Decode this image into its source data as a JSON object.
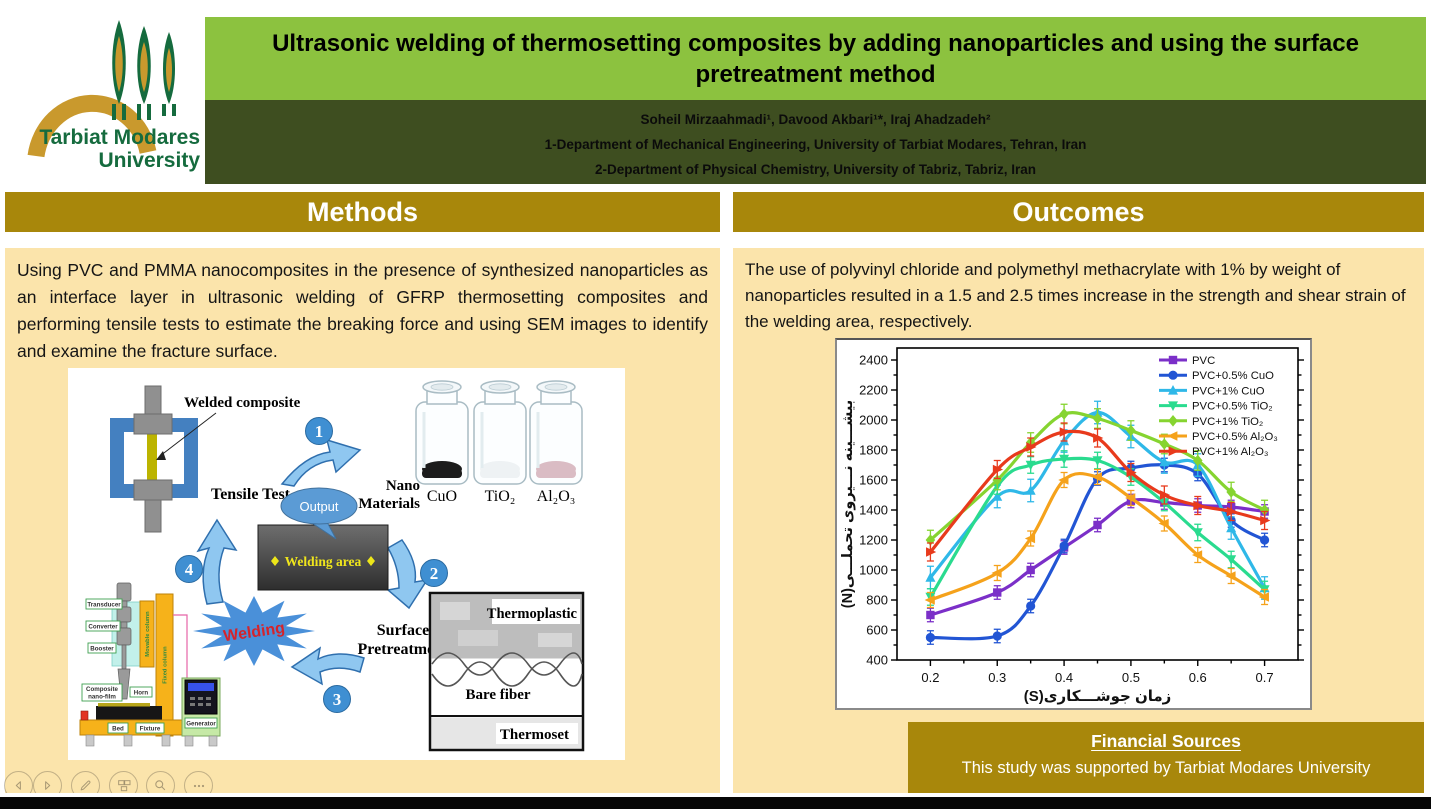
{
  "colors": {
    "title_banner": "#8CC23F",
    "authors_bar": "#3E4E20",
    "section_header": "#A8870B",
    "panel_bg": "#FBE4AB",
    "logo_green": "#156B3E",
    "logo_gold": "#C9992D",
    "bottom_bar": "#060606"
  },
  "logo": {
    "name1": "Tarbiat Modares",
    "name2": "University"
  },
  "header": {
    "title": "Ultrasonic welding of thermosetting composites by adding nanoparticles and using the surface pretreatment method",
    "authors": "Soheil Mirzaahmadi¹, Davood Akbari¹*, Iraj Ahadzadeh²",
    "affiliation1": "1-Department of Mechanical Engineering, University of Tarbiat Modares, Tehran, Iran",
    "affiliation2": "2-Department of Physical Chemistry, University of Tabriz, Tabriz, Iran"
  },
  "methods": {
    "header": "Methods",
    "paragraph": "Using PVC and PMMA nanocomposites in the presence of synthesized nanoparticles as an interface layer in ultrasonic welding of GFRP thermosetting composites and performing tensile tests to estimate the breaking force and using SEM images to identify and examine the fracture surface."
  },
  "figure": {
    "welded_composite": "Welded composite",
    "tensile_test": "Tensile Test",
    "output": "Output",
    "welding_area": "Welding area",
    "nano_line1": "Nano",
    "nano_line2": "Materials",
    "jars": [
      "CuO",
      "TiO₂",
      "Al₂O₃"
    ],
    "jar_powder_colors": [
      "#1c1c1c",
      "#eef2f4",
      "#dabcc4"
    ],
    "welding": "Welding",
    "surface_line1": "Surface",
    "surface_line2": "Pretreatment",
    "layers": [
      "Thermoplastic",
      "Bare fiber",
      "Thermoset"
    ],
    "steps": [
      "1",
      "2",
      "3",
      "4"
    ],
    "machine": {
      "transducer": "Transducer",
      "converter": "Converter",
      "booster": "Booster",
      "movable_column": "Movable column",
      "fixed_column": "Fixed column",
      "composite_film_1": "Composite",
      "composite_film_2": "nano-film",
      "horn": "Horn",
      "bed": "Bed",
      "fixture": "Fixture",
      "generator": "Generator"
    }
  },
  "outcomes": {
    "header": "Outcomes",
    "paragraph": "The use of polyvinyl chloride and polymethyl methacrylate with 1% by weight of nanoparticles resulted in a 1.5 and 2.5 times increase in the strength and shear strain of the welding area, respectively.",
    "financial_title": "Financial Sources",
    "financial_body": "This study was supported by Tarbiat Modares University"
  },
  "chart_data": {
    "type": "line",
    "x": [
      0.2,
      0.3,
      0.35,
      0.4,
      0.45,
      0.5,
      0.55,
      0.6,
      0.65,
      0.7
    ],
    "xlabel": "زمان جوشـــکاری(S)",
    "ylabel": "بیشـــینه نـــیروی تحملـــی(N)",
    "xlim": [
      0.15,
      0.75
    ],
    "ylim": [
      400,
      2480
    ],
    "xticks": [
      0.2,
      0.3,
      0.4,
      0.5,
      0.6,
      0.7
    ],
    "yticks": [
      400,
      600,
      800,
      1000,
      1200,
      1400,
      1600,
      1800,
      2000,
      2200,
      2400
    ],
    "grid": false,
    "legend_position": "top-right",
    "series": [
      {
        "name": "PVC",
        "color": "#7B2FC8",
        "marker": "square",
        "err": 45,
        "values": [
          700,
          850,
          1000,
          1150,
          1300,
          1460,
          1450,
          1430,
          1420,
          1390
        ]
      },
      {
        "name": "PVC+0.5% CuO",
        "color": "#2255D4",
        "marker": "circle",
        "err": 45,
        "values": [
          550,
          560,
          760,
          1160,
          1610,
          1680,
          1700,
          1640,
          1330,
          1200
        ]
      },
      {
        "name": "PVC+1% CuO",
        "color": "#2FB8E8",
        "marker": "triangle-up",
        "err": 75,
        "values": [
          950,
          1490,
          1530,
          1860,
          2050,
          1890,
          1720,
          1700,
          1280,
          880
        ]
      },
      {
        "name": "PVC+0.5% TiO₂",
        "color": "#2ADB8F",
        "marker": "triangle-down",
        "err": 55,
        "values": [
          820,
          1560,
          1700,
          1740,
          1730,
          1620,
          1450,
          1250,
          1070,
          870
        ]
      },
      {
        "name": "PVC+1% TiO₂",
        "color": "#86D430",
        "marker": "diamond",
        "err": 65,
        "values": [
          1200,
          1600,
          1850,
          2040,
          2010,
          1930,
          1840,
          1730,
          1520,
          1400
        ]
      },
      {
        "name": "PVC+0.5% Al₂O₃",
        "color": "#F5A21B",
        "marker": "triangle-left",
        "err": 50,
        "values": [
          800,
          980,
          1210,
          1600,
          1620,
          1480,
          1310,
          1100,
          960,
          820
        ]
      },
      {
        "name": "PVC+1% Al₂O₃",
        "color": "#E83A1C",
        "marker": "triangle-right",
        "err": 60,
        "values": [
          1120,
          1670,
          1820,
          1920,
          1880,
          1650,
          1500,
          1430,
          1390,
          1330
        ]
      }
    ]
  },
  "toolbar": {
    "buttons": [
      "previous-slide",
      "next-slide",
      "pen",
      "see-all-slides",
      "zoom",
      "more-options"
    ]
  }
}
